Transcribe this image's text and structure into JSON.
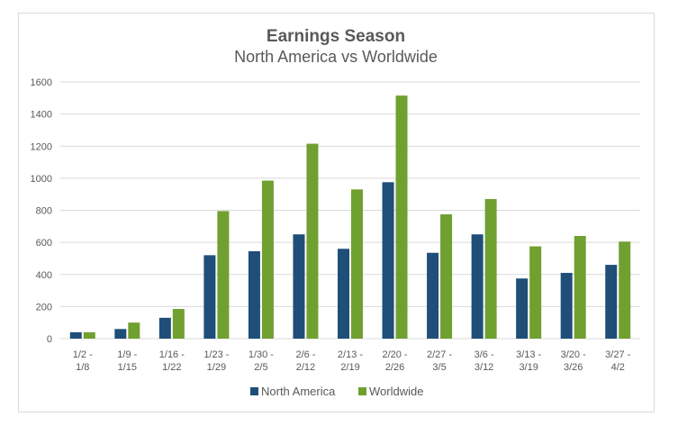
{
  "chart_data": {
    "type": "bar",
    "title": "Earnings Season",
    "subtitle": "North America vs Worldwide",
    "categories": [
      [
        "1/2 -",
        "1/8"
      ],
      [
        "1/9 -",
        "1/15"
      ],
      [
        "1/16 -",
        "1/22"
      ],
      [
        "1/23 -",
        "1/29"
      ],
      [
        "1/30 -",
        "2/5"
      ],
      [
        "2/6 -",
        "2/12"
      ],
      [
        "2/13 -",
        "2/19"
      ],
      [
        "2/20 -",
        "2/26"
      ],
      [
        "2/27 -",
        "3/5"
      ],
      [
        "3/6 -",
        "3/12"
      ],
      [
        "3/13 -",
        "3/19"
      ],
      [
        "3/20 -",
        "3/26"
      ],
      [
        "3/27 -",
        "4/2"
      ]
    ],
    "series": [
      {
        "name": "North America",
        "color": "#1f4e79",
        "values": [
          40,
          60,
          130,
          520,
          545,
          650,
          560,
          975,
          535,
          650,
          375,
          410,
          460
        ]
      },
      {
        "name": "Worldwide",
        "color": "#70a030",
        "values": [
          40,
          100,
          185,
          795,
          985,
          1215,
          930,
          1515,
          775,
          870,
          575,
          640,
          605
        ]
      }
    ],
    "ylim": [
      0,
      1600
    ],
    "yticks": [
      0,
      200,
      400,
      600,
      800,
      1000,
      1200,
      1400,
      1600
    ],
    "grid": true,
    "legend_position": "bottom"
  }
}
